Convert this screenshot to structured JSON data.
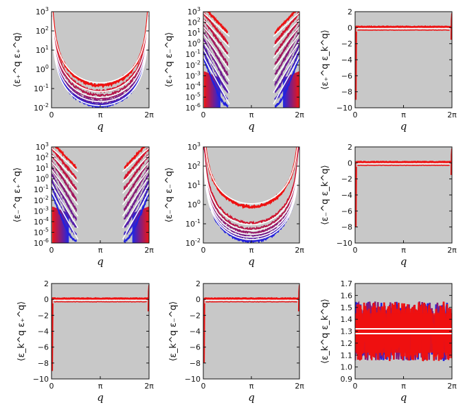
{
  "figure": {
    "background": "#ffffff",
    "panel_fill": "#c8c8c8",
    "colors": {
      "red": "#ee1111",
      "blue": "#2222dd",
      "white": "#ffffff"
    }
  },
  "chart_data": [
    {
      "id": "p1",
      "type": "line",
      "yscale": "log",
      "ylabel_text": "⟨ε₊^q ε₊^q⟩",
      "xlabel": "q",
      "xlim": [
        0,
        6.283
      ],
      "xticks": [
        "0",
        "π",
        "2π"
      ],
      "ylim": [
        0.01,
        1000
      ],
      "yticks": [
        "10-2",
        "10-1",
        "100",
        "101",
        "102",
        "103"
      ],
      "shape": "U",
      "series_levels": [
        0.15,
        0.075,
        0.045,
        0.03,
        0.022,
        0.017,
        0.014,
        0.012
      ],
      "white_levels": [
        0.2,
        0.07,
        0.035,
        0.021,
        0.013
      ],
      "color_order": "red-top-blue-bottom"
    },
    {
      "id": "p2",
      "type": "line",
      "yscale": "log",
      "ylabel_text": "⟨ε₊^q ε₋^q⟩",
      "xlabel": "q",
      "xlim": [
        0,
        6.283
      ],
      "xticks": [
        "0",
        "π",
        "2π"
      ],
      "ylim": [
        1e-06,
        1000
      ],
      "yticks": [
        "10-6",
        "10-5",
        "10-4",
        "10-3",
        "10-2",
        "10-1",
        "100",
        "101",
        "102",
        "103"
      ],
      "shape": "edge-decay",
      "edge_levels": [
        3,
        0.8,
        0.2,
        0.05,
        0.012,
        0.003,
        0.0008,
        0.0002,
        5e-05
      ],
      "white_levels": [
        4,
        0.9,
        0.2,
        0.04,
        0.008,
        0.0015,
        0.0003
      ],
      "fill_bottom_q": 1.0
    },
    {
      "id": "p3",
      "type": "line",
      "yscale": "linear",
      "ylabel_text": "⟨ε₊^q ε_k^q⟩",
      "xlabel": "q",
      "xlim": [
        0,
        6.283
      ],
      "xticks": [
        "0",
        "π",
        "2π"
      ],
      "ylim": [
        -10,
        2
      ],
      "yticks": [
        "−10",
        "−8",
        "−6",
        "−4",
        "−2",
        "0",
        "2"
      ],
      "shape": "flat-with-spikes",
      "red_level": 0.1,
      "white_level": -0.1,
      "lower_red_level": -0.3,
      "spike_min": -9
    },
    {
      "id": "p4",
      "type": "line",
      "yscale": "log",
      "ylabel_text": "⟨ε₋^q ε₊^q⟩",
      "xlabel": "q",
      "xlim": [
        0,
        6.283
      ],
      "xticks": [
        "0",
        "π",
        "2π"
      ],
      "ylim": [
        1e-06,
        1000
      ],
      "yticks": [
        "10-6",
        "10-5",
        "10-4",
        "10-3",
        "10-2",
        "10-1",
        "100",
        "101",
        "102",
        "103"
      ],
      "shape": "edge-decay",
      "edge_levels": [
        3,
        0.8,
        0.2,
        0.05,
        0.012,
        0.003,
        0.0008,
        0.0002,
        5e-05
      ],
      "white_levels": [
        4,
        0.9,
        0.2,
        0.04,
        0.008,
        0.0015,
        0.0003
      ],
      "fill_bottom_q": 1.0
    },
    {
      "id": "p5",
      "type": "line",
      "yscale": "log",
      "ylabel_text": "⟨ε₋^q ε₋^q⟩",
      "xlabel": "q",
      "xlim": [
        0,
        6.283
      ],
      "xticks": [
        "0",
        "π",
        "2π"
      ],
      "ylim": [
        0.01,
        1000
      ],
      "yticks": [
        "10-2",
        "10-1",
        "100",
        "101",
        "102",
        "103"
      ],
      "shape": "U",
      "series_levels": [
        0.8,
        0.11,
        0.055,
        0.035,
        0.025,
        0.018,
        0.014,
        0.012
      ],
      "white_levels": [
        1.1,
        0.09,
        0.045,
        0.028,
        0.02,
        0.015
      ],
      "color_order": "red-top-blue-bottom"
    },
    {
      "id": "p6",
      "type": "line",
      "yscale": "linear",
      "ylabel_text": "⟨ε₋^q ε_k^q⟩",
      "xlabel": "q",
      "xlim": [
        0,
        6.283
      ],
      "xticks": [
        "0",
        "π",
        "2π"
      ],
      "ylim": [
        -10,
        2
      ],
      "yticks": [
        "−10",
        "−8",
        "−6",
        "−4",
        "−2",
        "0",
        "2"
      ],
      "shape": "flat-with-spikes",
      "red_level": 0.1,
      "white_level": -0.1,
      "lower_red_level": -0.3,
      "spike_min": -8
    },
    {
      "id": "p7",
      "type": "line",
      "yscale": "linear",
      "ylabel_text": "⟨ε_k^q ε₊^q⟩",
      "xlabel": "q",
      "xlim": [
        0,
        6.283
      ],
      "xticks": [
        "0",
        "π",
        "2π"
      ],
      "ylim": [
        -10,
        2
      ],
      "yticks": [
        "−10",
        "−8",
        "−6",
        "−4",
        "−2",
        "0",
        "2"
      ],
      "shape": "flat-with-spikes",
      "red_level": 0.1,
      "white_level": -0.1,
      "lower_red_level": -0.3,
      "spike_min": -9
    },
    {
      "id": "p8",
      "type": "line",
      "yscale": "linear",
      "ylabel_text": "⟨ε_k^q ε₋^q⟩",
      "xlabel": "q",
      "xlim": [
        0,
        6.283
      ],
      "xticks": [
        "0",
        "π",
        "2π"
      ],
      "ylim": [
        -10,
        2
      ],
      "yticks": [
        "−10",
        "−8",
        "−6",
        "−4",
        "−2",
        "0",
        "2"
      ],
      "shape": "flat-with-spikes",
      "red_level": 0.1,
      "white_level": -0.1,
      "lower_red_level": -0.3,
      "spike_min": -8
    },
    {
      "id": "p9",
      "type": "line",
      "yscale": "linear",
      "ylabel_text": "⟨ε_k^q ε_k^q⟩",
      "xlabel": "q",
      "xlim": [
        0,
        6.283
      ],
      "xticks": [
        "0",
        "π",
        "2π"
      ],
      "ylim": [
        0.9,
        1.7
      ],
      "yticks": [
        "0.9",
        "1.0",
        "1.1",
        "1.2",
        "1.3",
        "1.4",
        "1.5",
        "1.6",
        "1.7"
      ],
      "shape": "noise-band",
      "band": [
        1.05,
        1.55
      ],
      "white_levels": [
        1.28,
        1.32
      ]
    }
  ]
}
